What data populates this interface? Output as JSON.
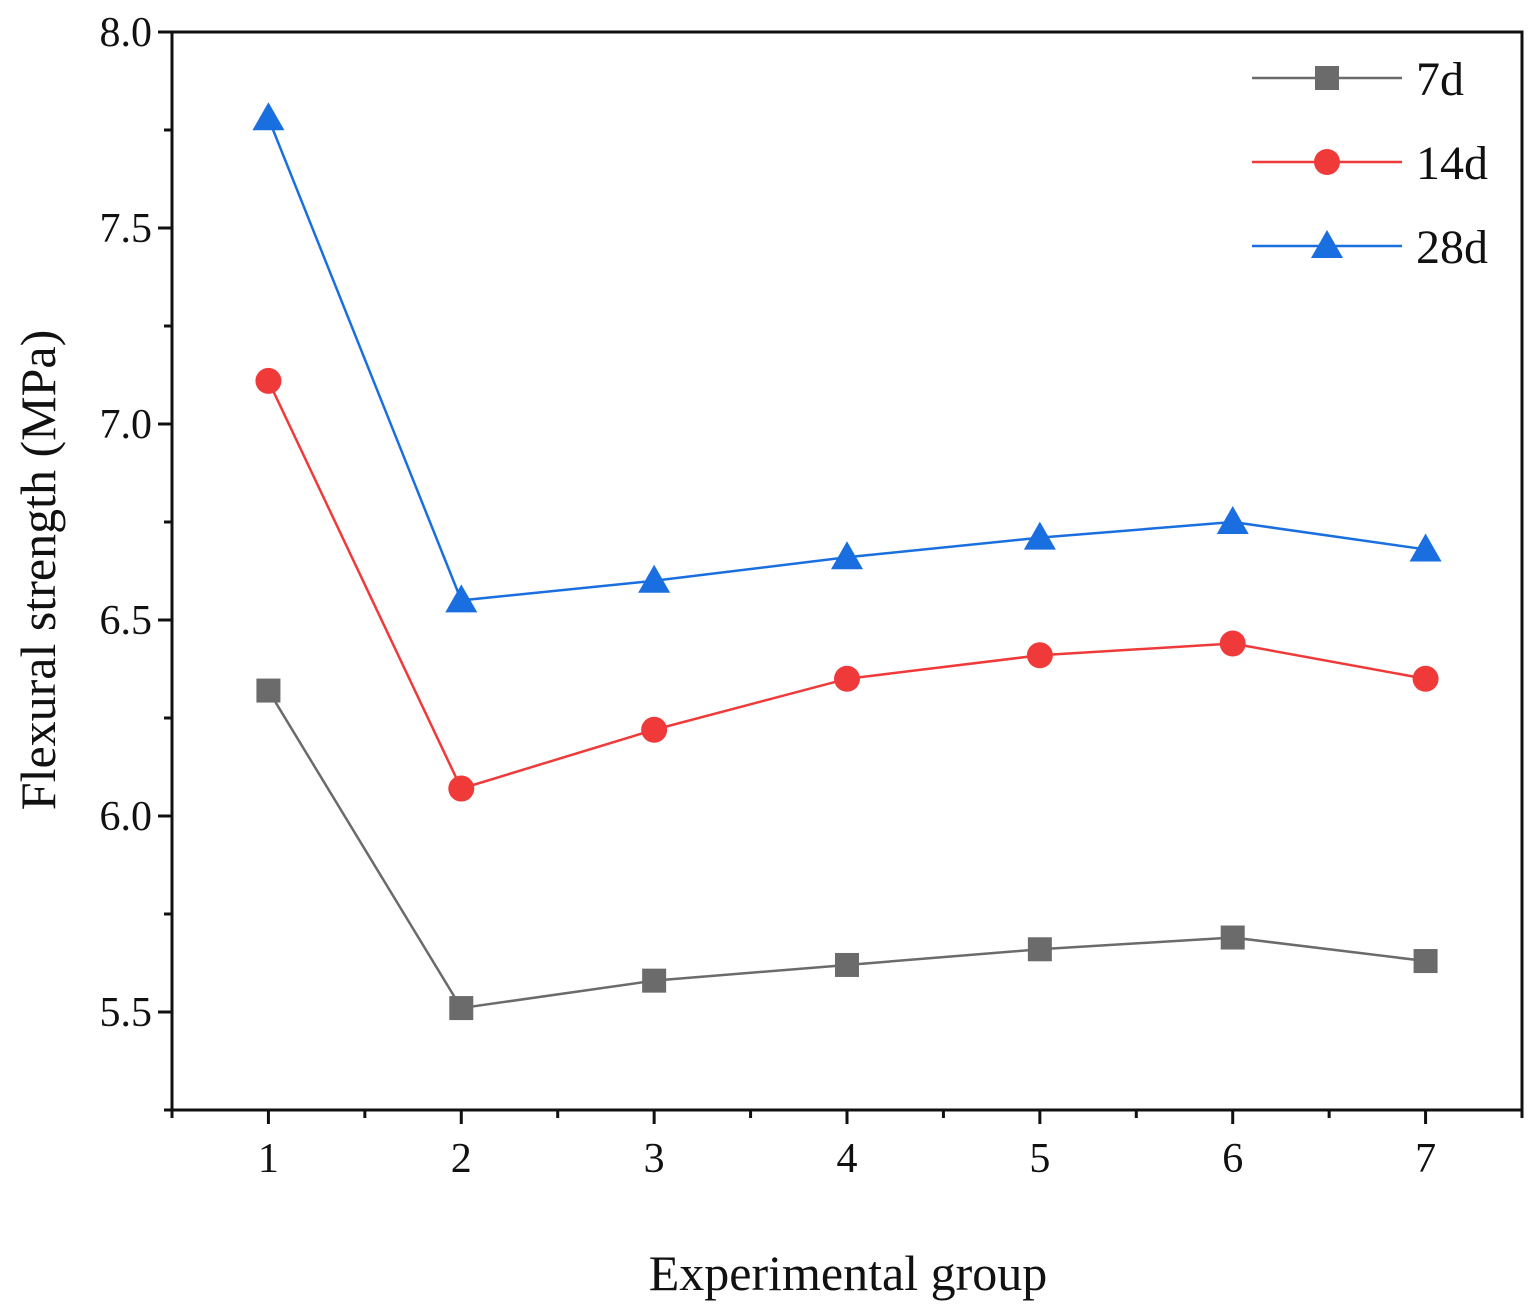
{
  "chart_data": {
    "type": "line",
    "title": "",
    "xlabel": "Experimental group",
    "ylabel": "Flexural strength (MPa)",
    "x": [
      1,
      2,
      3,
      4,
      5,
      6,
      7
    ],
    "xlim": [
      0.5,
      7.5
    ],
    "ylim": [
      5.25,
      8.0
    ],
    "yticks": [
      5.5,
      6.0,
      6.5,
      7.0,
      7.5,
      8.0
    ],
    "ytick_labels": [
      "5.5",
      "6.0",
      "6.5",
      "7.0",
      "7.5",
      "8.0"
    ],
    "xtick_labels": [
      "1",
      "2",
      "3",
      "4",
      "5",
      "6",
      "7"
    ],
    "legend_position": "top-right",
    "grid": false,
    "series": [
      {
        "name": "7d",
        "marker": "square",
        "color": "#6b6b6b",
        "values": [
          6.32,
          5.51,
          5.58,
          5.62,
          5.66,
          5.69,
          5.63
        ]
      },
      {
        "name": "14d",
        "marker": "circle",
        "color": "#f03a3a",
        "values": [
          7.11,
          6.07,
          6.22,
          6.35,
          6.41,
          6.44,
          6.35
        ]
      },
      {
        "name": "28d",
        "marker": "triangle",
        "color": "#1a6fe0",
        "values": [
          7.78,
          6.55,
          6.6,
          6.66,
          6.71,
          6.75,
          6.68
        ]
      }
    ]
  }
}
